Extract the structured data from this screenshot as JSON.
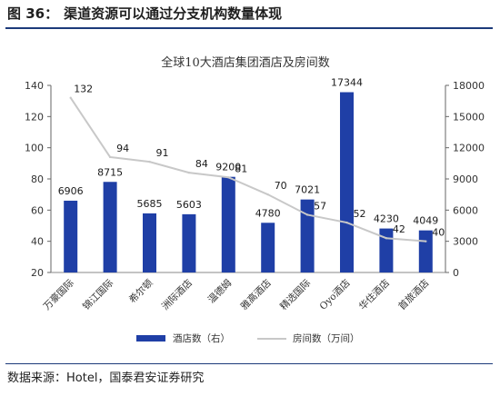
{
  "figure": {
    "prefix": "图 36：",
    "title": "渠道资源可以通过分支机构数量体现",
    "source": "数据来源：Hotel，国泰君安证券研究"
  },
  "chart_data": {
    "type": "bar",
    "title": "全球10大酒店集团酒店及房间数",
    "categories": [
      "万豪国际",
      "锦江国际",
      "希尔顿",
      "洲际酒店",
      "温德姆",
      "雅高酒店",
      "精选国际",
      "Oyo酒店",
      "华住酒店",
      "首旅酒店"
    ],
    "series": [
      {
        "name": "酒店数（右）",
        "axis": "right",
        "type": "bar",
        "color": "#1f3fa6",
        "values": [
          6906,
          8715,
          5685,
          5603,
          9200,
          4780,
          7021,
          17344,
          4230,
          4049
        ]
      },
      {
        "name": "房间数（万间）",
        "axis": "left",
        "type": "line",
        "color": "#c8c8c8",
        "values": [
          132,
          94,
          91,
          84,
          81,
          70,
          57,
          52,
          42,
          40
        ]
      }
    ],
    "left_axis": {
      "ylim": [
        20,
        140
      ],
      "ticks": [
        20,
        40,
        60,
        80,
        100,
        120,
        140
      ]
    },
    "right_axis": {
      "ylim": [
        0,
        18000
      ],
      "ticks": [
        0,
        3000,
        6000,
        9000,
        12000,
        15000,
        18000
      ]
    },
    "legend_position": "bottom",
    "grid": false
  }
}
